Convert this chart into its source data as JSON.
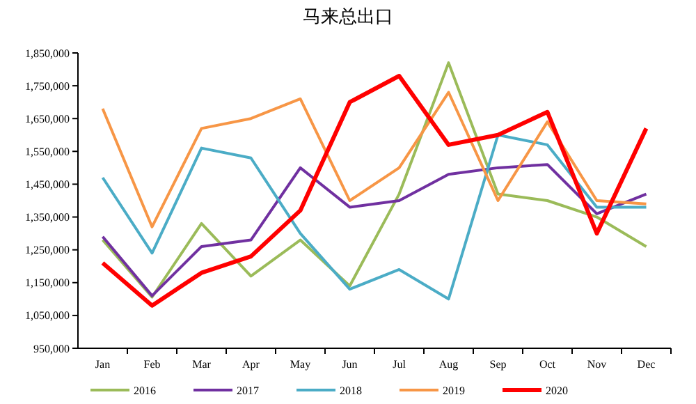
{
  "chart_data": {
    "type": "line",
    "title": "马来总出口",
    "categories": [
      "Jan",
      "Feb",
      "Mar",
      "Apr",
      "May",
      "Jun",
      "Jul",
      "Aug",
      "Sep",
      "Oct",
      "Nov",
      "Dec"
    ],
    "series": [
      {
        "name": "2016",
        "color": "#9bbb59",
        "values": [
          1280000,
          1106000,
          1330000,
          1170000,
          1280000,
          1140000,
          1420000,
          1820000,
          1420000,
          1400000,
          1350000,
          1260000
        ]
      },
      {
        "name": "2017",
        "color": "#7030a0",
        "values": [
          1290000,
          1110000,
          1260000,
          1280000,
          1500000,
          1380000,
          1400000,
          1480000,
          1500000,
          1510000,
          1360000,
          1420000
        ]
      },
      {
        "name": "2018",
        "color": "#4bacc6",
        "values": [
          1470000,
          1240000,
          1560000,
          1530000,
          1300000,
          1130000,
          1190000,
          1100000,
          1600000,
          1570000,
          1380000,
          1380000
        ]
      },
      {
        "name": "2019",
        "color": "#f79646",
        "values": [
          1680000,
          1320000,
          1620000,
          1650000,
          1710000,
          1400000,
          1500000,
          1730000,
          1400000,
          1640000,
          1400000,
          1390000
        ]
      },
      {
        "name": "2020",
        "color": "#ff0000",
        "values": [
          1210000,
          1080000,
          1180000,
          1230000,
          1370000,
          1700000,
          1780000,
          1570000,
          1600000,
          1670000,
          1300000,
          1620000
        ]
      }
    ],
    "ylim": [
      950000,
      1850000
    ],
    "yticks": [
      {
        "value": 950000,
        "label": "950,000"
      },
      {
        "value": 1050000,
        "label": "1,050,000"
      },
      {
        "value": 1150000,
        "label": "1,150,000"
      },
      {
        "value": 1250000,
        "label": "1,250,000"
      },
      {
        "value": 1350000,
        "label": "1,350,000"
      },
      {
        "value": 1450000,
        "label": "1,450,000"
      },
      {
        "value": 1550000,
        "label": "1,550,000"
      },
      {
        "value": 1650000,
        "label": "1,650,000"
      },
      {
        "value": 1750000,
        "label": "1,750,000"
      },
      {
        "value": 1850000,
        "label": "1,850,000"
      }
    ],
    "legend": "bottom",
    "marker": "none"
  }
}
